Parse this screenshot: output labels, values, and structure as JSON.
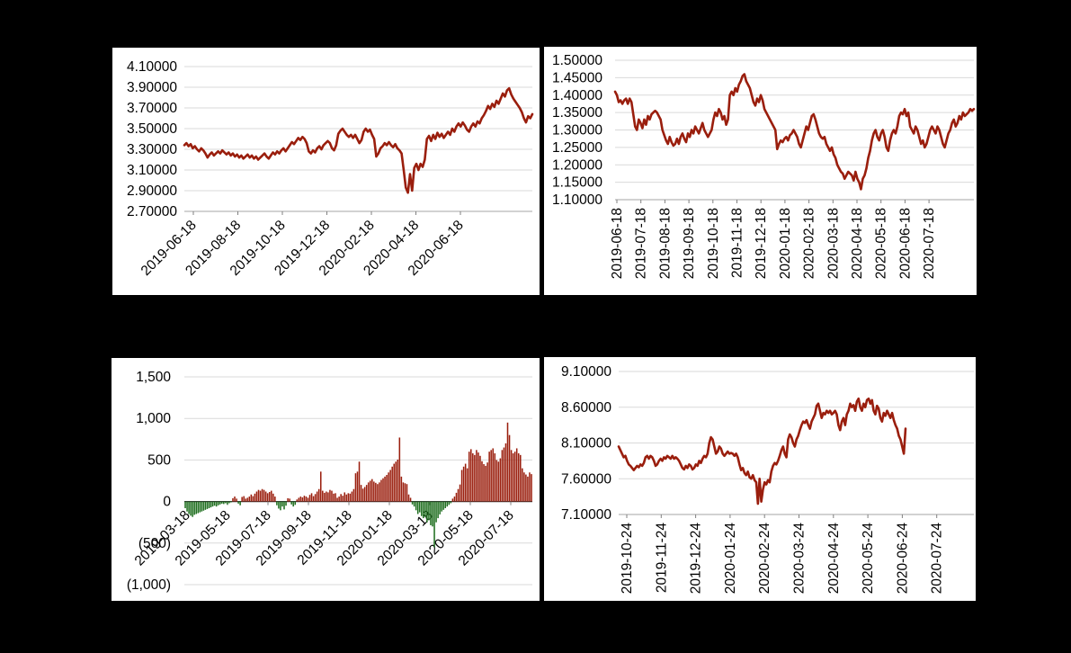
{
  "colors": {
    "background": "#000000",
    "panel_bg": "#FFFFFF",
    "series_line": "#9A1E0D",
    "bar_positive": "#9A1E0D",
    "bar_negative": "#1E6E1E",
    "gridline": "#D9D9D9",
    "axis_line": "#A6A6A6",
    "zero_axis_line": "#333333",
    "tick_mark": "#808080",
    "tick_label": "#000000",
    "negative_tick_label": "#FF0000"
  },
  "chart_data": [
    {
      "id": "top-left-fx-line",
      "type": "line",
      "ylim": [
        2.7,
        4.1
      ],
      "y_ticks": [
        {
          "label": "4.10000",
          "value": 4.1
        },
        {
          "label": "3.90000",
          "value": 3.9
        },
        {
          "label": "3.70000",
          "value": 3.7
        },
        {
          "label": "3.50000",
          "value": 3.5
        },
        {
          "label": "3.30000",
          "value": 3.3
        },
        {
          "label": "3.10000",
          "value": 3.1
        },
        {
          "label": "2.90000",
          "value": 2.9
        },
        {
          "label": "2.70000",
          "value": 2.7
        }
      ],
      "x_tick_labels": [
        "2019-06-18",
        "2019-08-18",
        "2019-10-18",
        "2019-12-18",
        "2020-02-18",
        "2020-04-18",
        "2020-06-18"
      ],
      "x_label_rotation": 45,
      "values": [
        3.34,
        3.36,
        3.33,
        3.35,
        3.31,
        3.33,
        3.3,
        3.28,
        3.31,
        3.29,
        3.26,
        3.22,
        3.25,
        3.27,
        3.24,
        3.26,
        3.28,
        3.26,
        3.29,
        3.27,
        3.25,
        3.27,
        3.24,
        3.26,
        3.23,
        3.25,
        3.22,
        3.24,
        3.21,
        3.23,
        3.25,
        3.22,
        3.24,
        3.21,
        3.23,
        3.2,
        3.22,
        3.24,
        3.26,
        3.23,
        3.21,
        3.24,
        3.27,
        3.25,
        3.28,
        3.26,
        3.29,
        3.31,
        3.28,
        3.31,
        3.34,
        3.37,
        3.35,
        3.38,
        3.41,
        3.39,
        3.42,
        3.4,
        3.36,
        3.28,
        3.26,
        3.29,
        3.27,
        3.31,
        3.33,
        3.3,
        3.34,
        3.36,
        3.38,
        3.36,
        3.31,
        3.29,
        3.34,
        3.45,
        3.48,
        3.5,
        3.47,
        3.44,
        3.42,
        3.44,
        3.41,
        3.44,
        3.4,
        3.36,
        3.39,
        3.47,
        3.5,
        3.47,
        3.49,
        3.44,
        3.4,
        3.23,
        3.26,
        3.31,
        3.33,
        3.36,
        3.34,
        3.37,
        3.34,
        3.32,
        3.35,
        3.31,
        3.29,
        3.26,
        3.1,
        2.93,
        2.88,
        3.06,
        2.9,
        3.12,
        3.16,
        3.1,
        3.16,
        3.13,
        3.2,
        3.4,
        3.43,
        3.38,
        3.44,
        3.4,
        3.46,
        3.42,
        3.45,
        3.41,
        3.44,
        3.47,
        3.44,
        3.5,
        3.47,
        3.52,
        3.55,
        3.52,
        3.56,
        3.53,
        3.49,
        3.47,
        3.52,
        3.55,
        3.52,
        3.57,
        3.55,
        3.6,
        3.63,
        3.67,
        3.72,
        3.69,
        3.74,
        3.71,
        3.77,
        3.74,
        3.79,
        3.84,
        3.81,
        3.87,
        3.89,
        3.83,
        3.79,
        3.76,
        3.73,
        3.7,
        3.66,
        3.6,
        3.56,
        3.62,
        3.6,
        3.64
      ]
    },
    {
      "id": "top-right-fx-line",
      "type": "line",
      "ylim": [
        1.1,
        1.5
      ],
      "y_ticks": [
        {
          "label": "1.50000",
          "value": 1.5
        },
        {
          "label": "1.45000",
          "value": 1.45
        },
        {
          "label": "1.40000",
          "value": 1.4
        },
        {
          "label": "1.35000",
          "value": 1.35
        },
        {
          "label": "1.30000",
          "value": 1.3
        },
        {
          "label": "1.25000",
          "value": 1.25
        },
        {
          "label": "1.20000",
          "value": 1.2
        },
        {
          "label": "1.15000",
          "value": 1.15
        },
        {
          "label": "1.10000",
          "value": 1.1
        }
      ],
      "x_tick_labels": [
        "2019-06-18",
        "2019-07-18",
        "2019-08-18",
        "2019-09-18",
        "2019-10-18",
        "2019-11-18",
        "2019-12-18",
        "2020-01-18",
        "2020-02-18",
        "2020-03-18",
        "2020-04-18",
        "2020-05-18",
        "2020-06-18",
        "2020-07-18"
      ],
      "x_label_rotation": 90,
      "values": [
        1.41,
        1.4,
        1.38,
        1.385,
        1.375,
        1.385,
        1.39,
        1.375,
        1.39,
        1.38,
        1.345,
        1.31,
        1.3,
        1.33,
        1.32,
        1.305,
        1.33,
        1.315,
        1.34,
        1.33,
        1.345,
        1.35,
        1.355,
        1.35,
        1.34,
        1.33,
        1.3,
        1.285,
        1.27,
        1.26,
        1.28,
        1.265,
        1.255,
        1.26,
        1.275,
        1.26,
        1.28,
        1.29,
        1.275,
        1.265,
        1.29,
        1.28,
        1.3,
        1.29,
        1.31,
        1.3,
        1.29,
        1.305,
        1.32,
        1.3,
        1.29,
        1.28,
        1.29,
        1.3,
        1.33,
        1.35,
        1.34,
        1.36,
        1.35,
        1.33,
        1.34,
        1.315,
        1.33,
        1.4,
        1.41,
        1.4,
        1.42,
        1.41,
        1.43,
        1.44,
        1.455,
        1.46,
        1.44,
        1.43,
        1.42,
        1.4,
        1.38,
        1.37,
        1.39,
        1.38,
        1.4,
        1.385,
        1.36,
        1.35,
        1.34,
        1.33,
        1.32,
        1.31,
        1.3,
        1.245,
        1.26,
        1.27,
        1.265,
        1.275,
        1.28,
        1.27,
        1.285,
        1.29,
        1.3,
        1.29,
        1.28,
        1.26,
        1.25,
        1.27,
        1.29,
        1.31,
        1.3,
        1.32,
        1.34,
        1.345,
        1.33,
        1.31,
        1.29,
        1.28,
        1.275,
        1.28,
        1.26,
        1.25,
        1.24,
        1.25,
        1.23,
        1.22,
        1.2,
        1.19,
        1.18,
        1.175,
        1.16,
        1.17,
        1.18,
        1.175,
        1.17,
        1.155,
        1.18,
        1.16,
        1.15,
        1.13,
        1.16,
        1.17,
        1.19,
        1.22,
        1.24,
        1.27,
        1.29,
        1.3,
        1.28,
        1.27,
        1.29,
        1.3,
        1.28,
        1.25,
        1.24,
        1.27,
        1.29,
        1.3,
        1.29,
        1.31,
        1.34,
        1.35,
        1.345,
        1.36,
        1.34,
        1.35,
        1.31,
        1.3,
        1.29,
        1.31,
        1.3,
        1.28,
        1.26,
        1.27,
        1.25,
        1.26,
        1.28,
        1.3,
        1.31,
        1.3,
        1.29,
        1.31,
        1.3,
        1.28,
        1.26,
        1.25,
        1.27,
        1.29,
        1.3,
        1.32,
        1.33,
        1.31,
        1.32,
        1.34,
        1.33,
        1.35,
        1.34,
        1.345,
        1.35,
        1.36,
        1.355,
        1.36
      ]
    },
    {
      "id": "bottom-left-volume-bars",
      "type": "bar",
      "ylim": [
        -1000,
        1500
      ],
      "y_ticks": [
        {
          "label": "1,500",
          "value": 1500
        },
        {
          "label": "1,000",
          "value": 1000
        },
        {
          "label": "500",
          "value": 500
        },
        {
          "label": "0",
          "value": 0
        },
        {
          "label": "(500)",
          "value": -500
        },
        {
          "label": "(1,000)",
          "value": -1000
        }
      ],
      "x_tick_labels": [
        "2019-03-18",
        "2019-05-18",
        "2019-07-18",
        "2019-09-18",
        "2019-11-18",
        "2020-01-18",
        "2020-03-18",
        "2020-05-18",
        "2020-07-18"
      ],
      "x_label_rotation": 45,
      "values": [
        -80,
        -120,
        -150,
        -170,
        -185,
        -160,
        -150,
        -140,
        -130,
        -120,
        -110,
        -100,
        -90,
        -80,
        -70,
        -60,
        -50,
        -60,
        -45,
        -35,
        -25,
        -30,
        -20,
        -35,
        -20,
        -10,
        40,
        60,
        35,
        -25,
        -45,
        55,
        65,
        35,
        45,
        60,
        85,
        65,
        95,
        120,
        140,
        130,
        150,
        140,
        120,
        100,
        115,
        130,
        95,
        60,
        -45,
        -85,
        -105,
        -60,
        -95,
        -50,
        40,
        35,
        -35,
        -60,
        -40,
        25,
        45,
        60,
        50,
        70,
        60,
        45,
        80,
        100,
        65,
        90,
        120,
        150,
        360,
        130,
        105,
        120,
        110,
        140,
        130,
        95,
        100,
        45,
        60,
        90,
        70,
        110,
        85,
        100,
        95,
        120,
        150,
        340,
        360,
        480,
        200,
        155,
        175,
        200,
        230,
        250,
        270,
        240,
        225,
        210,
        230,
        260,
        280,
        300,
        320,
        350,
        380,
        420,
        455,
        480,
        505,
        770,
        300,
        230,
        220,
        210,
        85,
        45,
        -35,
        -60,
        -105,
        -150,
        -130,
        -175,
        -200,
        -185,
        -250,
        -225,
        -285,
        -300,
        -550,
        -250,
        -200,
        -155,
        -120,
        -100,
        -80,
        -60,
        -40,
        -20,
        35,
        60,
        105,
        150,
        205,
        380,
        420,
        455,
        400,
        600,
        630,
        580,
        560,
        620,
        590,
        550,
        485,
        450,
        430,
        470,
        600,
        620,
        640,
        580,
        500,
        480,
        520,
        620,
        650,
        700,
        950,
        800,
        620,
        580,
        600,
        640,
        580,
        560,
        400,
        350,
        325,
        300,
        350,
        330
      ]
    },
    {
      "id": "bottom-right-fx-line",
      "type": "line",
      "ylim": [
        7.1,
        9.1
      ],
      "y_ticks": [
        {
          "label": "9.10000",
          "value": 9.1
        },
        {
          "label": "8.60000",
          "value": 8.6
        },
        {
          "label": "8.10000",
          "value": 8.1
        },
        {
          "label": "7.60000",
          "value": 7.6
        },
        {
          "label": "7.10000",
          "value": 7.1
        }
      ],
      "x_tick_labels": [
        "2019-10-24",
        "2019-11-24",
        "2019-12-24",
        "2020-01-24",
        "2020-02-24",
        "2020-03-24",
        "2020-04-24",
        "2020-05-24",
        "2020-06-24",
        "2020-07-24"
      ],
      "x_label_rotation": 90,
      "values": [
        8.05,
        8.0,
        7.95,
        7.9,
        7.92,
        7.85,
        7.8,
        7.78,
        7.75,
        7.72,
        7.75,
        7.78,
        7.76,
        7.8,
        7.78,
        7.82,
        7.9,
        7.92,
        7.88,
        7.92,
        7.9,
        7.85,
        7.78,
        7.8,
        7.85,
        7.88,
        7.85,
        7.9,
        7.88,
        7.92,
        7.9,
        7.88,
        7.92,
        7.88,
        7.9,
        7.88,
        7.85,
        7.8,
        7.75,
        7.73,
        7.78,
        7.75,
        7.8,
        7.78,
        7.73,
        7.75,
        7.8,
        7.78,
        7.85,
        7.82,
        7.88,
        7.92,
        7.9,
        7.95,
        8.1,
        8.18,
        8.15,
        8.05,
        7.95,
        7.98,
        8.05,
        8.02,
        7.95,
        7.92,
        7.95,
        7.98,
        7.95,
        7.96,
        7.95,
        7.92,
        7.95,
        7.9,
        7.8,
        7.72,
        7.75,
        7.68,
        7.65,
        7.7,
        7.62,
        7.6,
        7.65,
        7.58,
        7.55,
        7.25,
        7.6,
        7.28,
        7.45,
        7.55,
        7.52,
        7.58,
        7.55,
        7.7,
        7.78,
        7.82,
        7.8,
        7.85,
        7.92,
        8.0,
        8.05,
        7.95,
        7.9,
        8.15,
        8.22,
        8.18,
        8.1,
        8.05,
        8.15,
        8.2,
        8.28,
        8.35,
        8.4,
        8.38,
        8.42,
        8.35,
        8.3,
        8.4,
        8.45,
        8.5,
        8.62,
        8.65,
        8.55,
        8.45,
        8.52,
        8.5,
        8.55,
        8.52,
        8.55,
        8.5,
        8.52,
        8.55,
        8.5,
        8.35,
        8.28,
        8.4,
        8.45,
        8.35,
        8.5,
        8.55,
        8.65,
        8.6,
        8.63,
        8.55,
        8.68,
        8.72,
        8.6,
        8.55,
        8.65,
        8.6,
        8.7,
        8.72,
        8.65,
        8.7,
        8.55,
        8.5,
        8.62,
        8.58,
        8.45,
        8.4,
        8.52,
        8.48,
        8.55,
        8.5,
        8.45,
        8.52,
        8.42,
        8.35,
        8.3,
        8.2,
        8.15,
        8.05,
        7.95,
        8.3
      ]
    }
  ]
}
